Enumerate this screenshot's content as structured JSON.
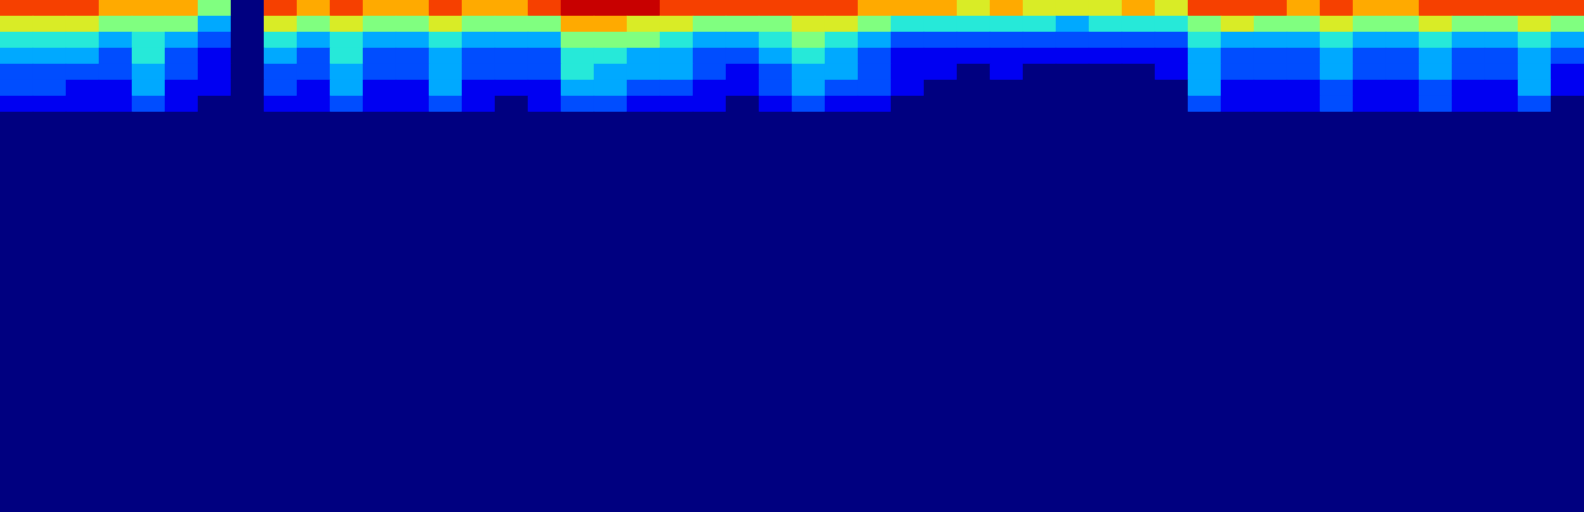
{
  "chart_data": {
    "type": "heatmap",
    "tick_labels": false,
    "grid": false,
    "color_range": [
      0,
      10
    ],
    "cells": [
      [
        8,
        8,
        8,
        7,
        7,
        7,
        5,
        0,
        8,
        7,
        8,
        7,
        7,
        8,
        7,
        7,
        8,
        9,
        9,
        9,
        8,
        8,
        8,
        8,
        8,
        8,
        7,
        7,
        7,
        6,
        7,
        6,
        6,
        6,
        7,
        6,
        8,
        8,
        8,
        7,
        8,
        7,
        7,
        8,
        8,
        8,
        8,
        8
      ],
      [
        6,
        6,
        6,
        5,
        5,
        5,
        3,
        0,
        6,
        5,
        6,
        5,
        5,
        6,
        5,
        5,
        5,
        7,
        7,
        6,
        6,
        5,
        5,
        5,
        6,
        6,
        5,
        4,
        4,
        4,
        4,
        4,
        3,
        4,
        4,
        4,
        5,
        6,
        5,
        5,
        6,
        5,
        5,
        6,
        5,
        5,
        6,
        5
      ],
      [
        4,
        4,
        4,
        3,
        4,
        3,
        2,
        0,
        4,
        3,
        4,
        3,
        3,
        4,
        3,
        3,
        3,
        5,
        5,
        5,
        4,
        3,
        3,
        4,
        5,
        4,
        3,
        2,
        2,
        2,
        2,
        2,
        2,
        2,
        2,
        2,
        4,
        3,
        3,
        3,
        4,
        3,
        3,
        4,
        3,
        3,
        4,
        3
      ],
      [
        3,
        3,
        3,
        2,
        4,
        2,
        1,
        0,
        3,
        2,
        4,
        2,
        2,
        3,
        2,
        2,
        2,
        4,
        4,
        3,
        3,
        2,
        2,
        3,
        4,
        3,
        2,
        1,
        1,
        1,
        1,
        1,
        1,
        1,
        1,
        1,
        3,
        2,
        2,
        2,
        3,
        2,
        2,
        3,
        2,
        2,
        3,
        2
      ],
      [
        2,
        2,
        2,
        2,
        3,
        2,
        1,
        0,
        2,
        2,
        3,
        2,
        2,
        3,
        2,
        2,
        2,
        4,
        3,
        3,
        3,
        2,
        1,
        2,
        3,
        3,
        2,
        1,
        1,
        0,
        1,
        0,
        0,
        0,
        0,
        1,
        3,
        2,
        2,
        2,
        3,
        2,
        2,
        3,
        2,
        2,
        3,
        1
      ],
      [
        2,
        2,
        1,
        1,
        3,
        1,
        1,
        0,
        2,
        1,
        3,
        1,
        1,
        3,
        1,
        1,
        1,
        3,
        3,
        2,
        2,
        1,
        1,
        2,
        3,
        2,
        2,
        1,
        0,
        0,
        0,
        0,
        0,
        0,
        0,
        0,
        3,
        1,
        1,
        1,
        2,
        1,
        1,
        2,
        1,
        1,
        3,
        1
      ],
      [
        1,
        1,
        1,
        1,
        2,
        1,
        0,
        0,
        1,
        1,
        2,
        1,
        1,
        2,
        1,
        0,
        1,
        2,
        2,
        1,
        1,
        1,
        0,
        1,
        2,
        1,
        1,
        0,
        0,
        0,
        0,
        0,
        0,
        0,
        0,
        0,
        2,
        1,
        1,
        1,
        2,
        1,
        1,
        2,
        1,
        1,
        2,
        0
      ],
      [
        0,
        0,
        0,
        0,
        0,
        0,
        0,
        0,
        0,
        0,
        0,
        0,
        0,
        0,
        0,
        0,
        0,
        0,
        0,
        0,
        0,
        0,
        0,
        0,
        0,
        0,
        0,
        0,
        0,
        0,
        0,
        0,
        0,
        0,
        0,
        0,
        0,
        0,
        0,
        0,
        0,
        0,
        0,
        0,
        0,
        0,
        0,
        0
      ],
      [
        0,
        0,
        0,
        0,
        0,
        0,
        0,
        0,
        0,
        0,
        0,
        0,
        0,
        0,
        0,
        0,
        0,
        0,
        0,
        0,
        0,
        0,
        0,
        0,
        0,
        0,
        0,
        0,
        0,
        0,
        0,
        0,
        0,
        0,
        0,
        0,
        0,
        0,
        0,
        0,
        0,
        0,
        0,
        0,
        0,
        0,
        0,
        0
      ],
      [
        0,
        0,
        0,
        0,
        0,
        0,
        0,
        0,
        0,
        0,
        0,
        0,
        0,
        0,
        0,
        0,
        0,
        0,
        0,
        0,
        0,
        0,
        0,
        0,
        0,
        0,
        0,
        0,
        0,
        0,
        0,
        0,
        0,
        0,
        0,
        0,
        0,
        0,
        0,
        0,
        0,
        0,
        0,
        0,
        0,
        0,
        0,
        0
      ],
      [
        0,
        0,
        0,
        0,
        0,
        0,
        0,
        0,
        0,
        0,
        0,
        0,
        0,
        0,
        0,
        0,
        0,
        0,
        0,
        0,
        0,
        0,
        0,
        0,
        0,
        0,
        0,
        0,
        0,
        0,
        0,
        0,
        0,
        0,
        0,
        0,
        0,
        0,
        0,
        0,
        0,
        0,
        0,
        0,
        0,
        0,
        0,
        0
      ],
      [
        0,
        0,
        0,
        0,
        0,
        0,
        0,
        0,
        0,
        0,
        0,
        0,
        0,
        0,
        0,
        0,
        0,
        0,
        0,
        0,
        0,
        0,
        0,
        0,
        0,
        0,
        0,
        0,
        0,
        0,
        0,
        0,
        0,
        0,
        0,
        0,
        0,
        0,
        0,
        0,
        0,
        0,
        0,
        0,
        0,
        0,
        0,
        0
      ],
      [
        0,
        0,
        0,
        0,
        0,
        0,
        0,
        0,
        0,
        0,
        0,
        0,
        0,
        0,
        0,
        0,
        0,
        0,
        0,
        0,
        0,
        0,
        0,
        0,
        0,
        0,
        0,
        0,
        0,
        0,
        0,
        0,
        0,
        0,
        0,
        0,
        0,
        0,
        0,
        0,
        0,
        0,
        0,
        0,
        0,
        0,
        0,
        0
      ],
      [
        0,
        0,
        0,
        0,
        0,
        0,
        0,
        0,
        0,
        0,
        0,
        0,
        0,
        0,
        0,
        0,
        0,
        0,
        0,
        0,
        0,
        0,
        0,
        0,
        0,
        0,
        0,
        0,
        0,
        0,
        0,
        0,
        0,
        0,
        0,
        0,
        0,
        0,
        0,
        0,
        0,
        0,
        0,
        0,
        0,
        0,
        0,
        0
      ],
      [
        0,
        0,
        0,
        0,
        0,
        0,
        0,
        0,
        0,
        0,
        0,
        0,
        0,
        0,
        0,
        0,
        0,
        0,
        0,
        0,
        0,
        0,
        0,
        0,
        0,
        0,
        0,
        0,
        0,
        0,
        0,
        0,
        0,
        0,
        0,
        0,
        0,
        0,
        0,
        0,
        0,
        0,
        0,
        0,
        0,
        0,
        0,
        0
      ],
      [
        0,
        0,
        0,
        0,
        0,
        0,
        0,
        0,
        0,
        0,
        0,
        0,
        0,
        0,
        0,
        0,
        0,
        0,
        0,
        0,
        0,
        0,
        0,
        0,
        0,
        0,
        0,
        0,
        0,
        0,
        0,
        0,
        0,
        0,
        0,
        0,
        0,
        0,
        0,
        0,
        0,
        0,
        0,
        0,
        0,
        0,
        0,
        0
      ],
      [
        0,
        0,
        0,
        0,
        0,
        0,
        0,
        0,
        0,
        0,
        0,
        0,
        0,
        0,
        0,
        0,
        0,
        0,
        0,
        0,
        0,
        0,
        0,
        0,
        0,
        0,
        0,
        0,
        0,
        0,
        0,
        0,
        0,
        0,
        0,
        0,
        0,
        0,
        0,
        0,
        0,
        0,
        0,
        0,
        0,
        0,
        0,
        0
      ],
      [
        0,
        0,
        0,
        0,
        0,
        0,
        0,
        0,
        0,
        0,
        0,
        0,
        0,
        0,
        0,
        0,
        0,
        0,
        0,
        0,
        0,
        0,
        0,
        0,
        0,
        0,
        0,
        0,
        0,
        0,
        0,
        0,
        0,
        0,
        0,
        0,
        0,
        0,
        0,
        0,
        0,
        0,
        0,
        0,
        0,
        0,
        0,
        0
      ],
      [
        0,
        0,
        0,
        0,
        0,
        0,
        0,
        0,
        0,
        0,
        0,
        0,
        0,
        0,
        0,
        0,
        0,
        0,
        0,
        0,
        0,
        0,
        0,
        0,
        0,
        0,
        0,
        0,
        0,
        0,
        0,
        0,
        0,
        0,
        0,
        0,
        0,
        0,
        0,
        0,
        0,
        0,
        0,
        0,
        0,
        0,
        0,
        0
      ],
      [
        0,
        0,
        0,
        0,
        0,
        0,
        0,
        0,
        0,
        0,
        0,
        0,
        0,
        0,
        0,
        0,
        0,
        0,
        0,
        0,
        0,
        0,
        0,
        0,
        0,
        0,
        0,
        0,
        0,
        0,
        0,
        0,
        0,
        0,
        0,
        0,
        0,
        0,
        0,
        0,
        0,
        0,
        0,
        0,
        0,
        0,
        0,
        0
      ],
      [
        0,
        0,
        0,
        0,
        0,
        0,
        0,
        0,
        0,
        0,
        0,
        0,
        0,
        0,
        0,
        0,
        0,
        0,
        0,
        0,
        0,
        0,
        0,
        0,
        0,
        0,
        0,
        0,
        0,
        0,
        0,
        0,
        0,
        0,
        0,
        0,
        0,
        0,
        0,
        0,
        0,
        0,
        0,
        0,
        0,
        0,
        0,
        0
      ],
      [
        0,
        0,
        0,
        0,
        0,
        0,
        0,
        0,
        0,
        0,
        0,
        0,
        0,
        0,
        0,
        0,
        0,
        0,
        0,
        0,
        0,
        0,
        0,
        0,
        0,
        0,
        0,
        0,
        0,
        0,
        0,
        0,
        0,
        0,
        0,
        0,
        0,
        0,
        0,
        0,
        0,
        0,
        0,
        0,
        0,
        0,
        0,
        0
      ],
      [
        0,
        0,
        0,
        0,
        0,
        0,
        0,
        0,
        0,
        0,
        0,
        0,
        0,
        0,
        0,
        0,
        0,
        0,
        0,
        0,
        0,
        0,
        0,
        0,
        0,
        0,
        0,
        0,
        0,
        0,
        0,
        0,
        0,
        0,
        0,
        0,
        0,
        0,
        0,
        0,
        0,
        0,
        0,
        0,
        0,
        0,
        0,
        0
      ],
      [
        0,
        0,
        0,
        0,
        0,
        0,
        0,
        0,
        0,
        0,
        0,
        0,
        0,
        0,
        0,
        0,
        0,
        0,
        0,
        0,
        0,
        0,
        0,
        0,
        0,
        0,
        0,
        0,
        0,
        0,
        0,
        0,
        0,
        0,
        0,
        0,
        0,
        0,
        0,
        0,
        0,
        0,
        0,
        0,
        0,
        0,
        0,
        0
      ],
      [
        0,
        0,
        0,
        0,
        0,
        0,
        0,
        0,
        0,
        0,
        0,
        0,
        0,
        0,
        0,
        0,
        0,
        0,
        0,
        0,
        0,
        0,
        0,
        0,
        0,
        0,
        0,
        0,
        0,
        0,
        0,
        0,
        0,
        0,
        0,
        0,
        0,
        0,
        0,
        0,
        0,
        0,
        0,
        0,
        0,
        0,
        0,
        0
      ],
      [
        0,
        0,
        0,
        0,
        0,
        0,
        0,
        0,
        0,
        0,
        0,
        0,
        0,
        0,
        0,
        0,
        0,
        0,
        0,
        0,
        0,
        0,
        0,
        0,
        0,
        0,
        0,
        0,
        0,
        0,
        0,
        0,
        0,
        0,
        0,
        0,
        0,
        0,
        0,
        0,
        0,
        0,
        0,
        0,
        0,
        0,
        0,
        0
      ],
      [
        0,
        0,
        0,
        0,
        0,
        0,
        0,
        0,
        0,
        0,
        0,
        0,
        0,
        0,
        0,
        0,
        0,
        0,
        0,
        0,
        0,
        0,
        0,
        0,
        0,
        0,
        0,
        0,
        0,
        0,
        0,
        0,
        0,
        0,
        0,
        0,
        0,
        0,
        0,
        0,
        0,
        0,
        0,
        0,
        0,
        0,
        0,
        0
      ],
      [
        0,
        0,
        0,
        0,
        0,
        0,
        0,
        0,
        0,
        0,
        0,
        0,
        0,
        0,
        0,
        0,
        0,
        0,
        0,
        0,
        0,
        0,
        0,
        0,
        0,
        0,
        0,
        0,
        0,
        0,
        0,
        0,
        0,
        0,
        0,
        0,
        0,
        0,
        0,
        0,
        0,
        0,
        0,
        0,
        0,
        0,
        0,
        0
      ],
      [
        0,
        0,
        0,
        0,
        0,
        0,
        0,
        0,
        0,
        0,
        0,
        0,
        0,
        0,
        0,
        0,
        0,
        0,
        0,
        0,
        0,
        0,
        0,
        0,
        0,
        0,
        0,
        0,
        0,
        0,
        0,
        0,
        0,
        0,
        0,
        0,
        0,
        0,
        0,
        0,
        0,
        0,
        0,
        0,
        0,
        0,
        0,
        0
      ],
      [
        0,
        0,
        0,
        0,
        0,
        0,
        0,
        0,
        0,
        0,
        0,
        0,
        0,
        0,
        0,
        0,
        0,
        0,
        0,
        0,
        0,
        0,
        0,
        0,
        0,
        0,
        0,
        0,
        0,
        0,
        0,
        0,
        0,
        0,
        0,
        0,
        0,
        0,
        0,
        0,
        0,
        0,
        0,
        0,
        0,
        0,
        0,
        0
      ],
      [
        0,
        0,
        0,
        0,
        0,
        0,
        0,
        0,
        0,
        0,
        0,
        0,
        0,
        0,
        0,
        0,
        0,
        0,
        0,
        0,
        0,
        0,
        0,
        0,
        0,
        0,
        0,
        0,
        0,
        0,
        0,
        0,
        0,
        0,
        0,
        0,
        0,
        0,
        0,
        0,
        0,
        0,
        0,
        0,
        0,
        0,
        0,
        0
      ],
      [
        0,
        0,
        0,
        0,
        0,
        0,
        0,
        0,
        0,
        0,
        0,
        0,
        0,
        0,
        0,
        0,
        0,
        0,
        0,
        0,
        0,
        0,
        0,
        0,
        0,
        0,
        0,
        0,
        0,
        0,
        0,
        0,
        0,
        0,
        0,
        0,
        0,
        0,
        0,
        0,
        0,
        0,
        0,
        0,
        0,
        0,
        0,
        0
      ]
    ]
  }
}
